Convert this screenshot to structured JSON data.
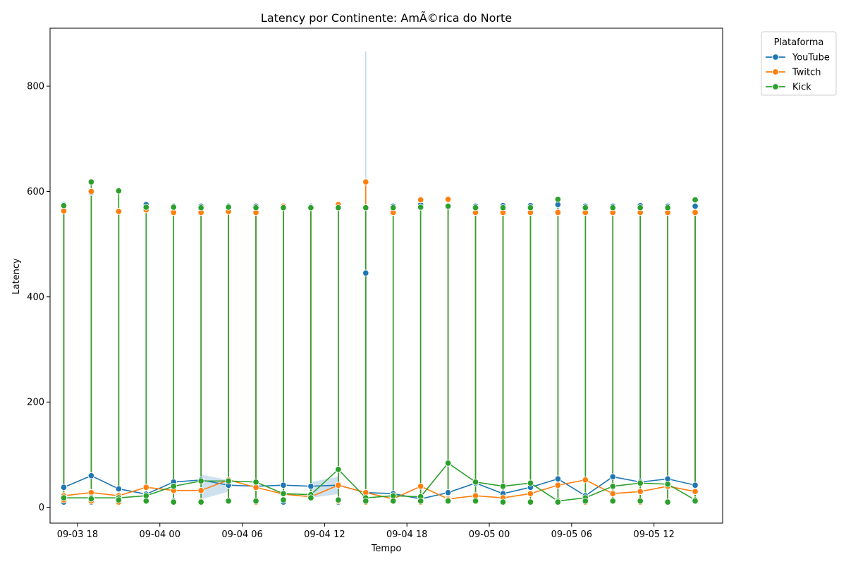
{
  "chart_data": {
    "type": "line",
    "title": "Latency por Continente: AmÃ©rica do Norte",
    "xlabel": "Tempo",
    "ylabel": "Latency",
    "xlim": [
      "2025-09-03 16:00",
      "2025-09-05 17:00"
    ],
    "ylim": [
      -30,
      910
    ],
    "x_ticks": [
      {
        "x": "2025-09-03 18:00",
        "label": "09-03 18"
      },
      {
        "x": "2025-09-04 00:00",
        "label": "09-04 00"
      },
      {
        "x": "2025-09-04 06:00",
        "label": "09-04 06"
      },
      {
        "x": "2025-09-04 12:00",
        "label": "09-04 12"
      },
      {
        "x": "2025-09-04 18:00",
        "label": "09-04 18"
      },
      {
        "x": "2025-09-05 00:00",
        "label": "09-05 00"
      },
      {
        "x": "2025-09-05 06:00",
        "label": "09-05 06"
      },
      {
        "x": "2025-09-05 12:00",
        "label": "09-05 12"
      }
    ],
    "y_ticks": [
      0,
      200,
      400,
      600,
      800
    ],
    "grid": false,
    "legend": {
      "title": "Plataforma",
      "position": "outside-top-right"
    },
    "x": [
      "2025-09-03 17:00",
      "2025-09-03 19:00",
      "2025-09-03 21:00",
      "2025-09-03 23:00",
      "2025-09-04 01:00",
      "2025-09-04 03:00",
      "2025-09-04 05:00",
      "2025-09-04 07:00",
      "2025-09-04 09:00",
      "2025-09-04 11:00",
      "2025-09-04 13:00",
      "2025-09-04 15:00",
      "2025-09-04 17:00",
      "2025-09-04 19:00",
      "2025-09-04 21:00",
      "2025-09-04 23:00",
      "2025-09-05 01:00",
      "2025-09-05 03:00",
      "2025-09-05 05:00",
      "2025-09-05 07:00",
      "2025-09-05 09:00",
      "2025-09-05 11:00",
      "2025-09-05 13:00",
      "2025-09-05 15:00"
    ],
    "series": [
      {
        "name": "YouTube",
        "color": "#1f77b4",
        "mean": [
          38,
          60,
          35,
          25,
          48,
          52,
          42,
          40,
          42,
          40,
          42,
          28,
          26,
          16,
          28,
          46,
          26,
          38,
          54,
          22,
          58,
          48,
          54,
          42
        ],
        "max": [
          575,
          598,
          562,
          575,
          572,
          572,
          572,
          572,
          572,
          572,
          572,
          445,
          572,
          575,
          572,
          572,
          573,
          573,
          575,
          572,
          572,
          573,
          572,
          572
        ],
        "min": [
          10,
          10,
          12,
          14,
          12,
          10,
          12,
          12,
          10,
          18,
          10,
          12,
          12,
          12,
          12,
          12,
          10,
          10,
          12,
          10,
          12,
          10,
          10,
          12
        ]
      },
      {
        "name": "Twitch",
        "color": "#ff7f0e",
        "mean": [
          22,
          28,
          22,
          38,
          32,
          32,
          52,
          38,
          25,
          20,
          42,
          28,
          16,
          40,
          16,
          22,
          18,
          26,
          42,
          52,
          26,
          30,
          40,
          30
        ],
        "max": [
          563,
          600,
          562,
          565,
          560,
          560,
          562,
          560,
          572,
          570,
          575,
          618,
          560,
          584,
          585,
          560,
          560,
          560,
          560,
          560,
          560,
          560,
          560,
          560
        ],
        "min": [
          14,
          12,
          10,
          12,
          10,
          12,
          12,
          10,
          14,
          18,
          12,
          10,
          12,
          10,
          14,
          12,
          10,
          10,
          10,
          10,
          12,
          10,
          10,
          14
        ]
      },
      {
        "name": "Kick",
        "color": "#2ca02c",
        "mean": [
          18,
          18,
          18,
          22,
          40,
          50,
          50,
          48,
          26,
          24,
          72,
          18,
          22,
          20,
          84,
          48,
          40,
          46,
          12,
          18,
          40,
          46,
          44,
          14
        ],
        "max": [
          573,
          618,
          601,
          570,
          570,
          569,
          570,
          569,
          569,
          569,
          569,
          569,
          569,
          570,
          572,
          569,
          569,
          569,
          585,
          569,
          569,
          569,
          569,
          584
        ],
        "min": [
          18,
          16,
          14,
          12,
          10,
          10,
          12,
          12,
          14,
          18,
          14,
          12,
          12,
          12,
          12,
          12,
          10,
          10,
          10,
          12,
          12,
          12,
          10,
          12
        ]
      }
    ],
    "confidence_bands": [
      {
        "series": "YouTube",
        "x": [
          "2025-09-04 03:00",
          "2025-09-04 05:00"
        ],
        "upper": [
          62,
          52
        ],
        "lower": [
          15,
          30
        ]
      },
      {
        "series": "YouTube",
        "x": [
          "2025-09-04 11:00",
          "2025-09-04 13:00"
        ],
        "upper": [
          48,
          58
        ],
        "lower": [
          18,
          25
        ]
      },
      {
        "series": "Twitch",
        "x": [
          "2025-09-04 15:00",
          "2025-09-04 15:00"
        ],
        "upper": [
          866,
          866
        ],
        "lower": [
          30,
          30
        ]
      }
    ]
  }
}
